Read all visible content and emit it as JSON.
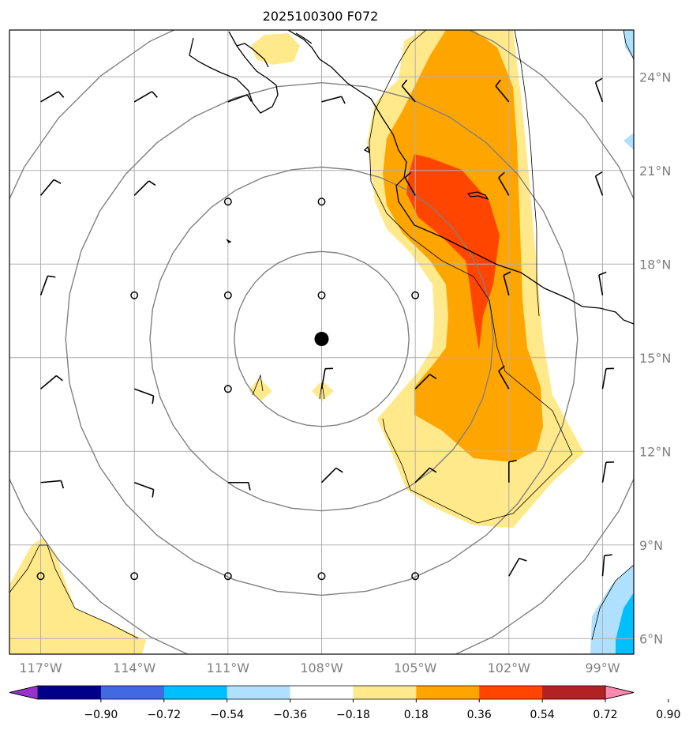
{
  "title": "2025100300 F072",
  "map": {
    "lon_range": [
      -118,
      -98
    ],
    "lat_range": [
      5.5,
      25.5
    ],
    "center_marker": {
      "lon": -108,
      "lat": 15.6
    },
    "lat_ticks": [
      {
        "value": 24,
        "label": "24°N"
      },
      {
        "value": 21,
        "label": "21°N"
      },
      {
        "value": 18,
        "label": "18°N"
      },
      {
        "value": 15,
        "label": "15°N"
      },
      {
        "value": 12,
        "label": "12°N"
      },
      {
        "value": 9,
        "label": "9°N"
      },
      {
        "value": 6,
        "label": "6°N"
      }
    ],
    "lon_ticks": [
      {
        "value": -117,
        "label": "117°W"
      },
      {
        "value": -114,
        "label": "114°W"
      },
      {
        "value": -111,
        "label": "111°W"
      },
      {
        "value": -108,
        "label": "108°W"
      },
      {
        "value": -105,
        "label": "105°W"
      },
      {
        "value": -102,
        "label": "102°W"
      },
      {
        "value": -99,
        "label": "99°W"
      }
    ],
    "range_rings_deg": [
      2.8,
      5.5,
      8.2,
      11.0
    ],
    "colors": {
      "grid": "#b0b0b0",
      "ring": "#808080",
      "coast": "#000000"
    }
  },
  "chart_data": {
    "type": "heatmap",
    "colorbar": {
      "levels": [
        "−0.90",
        "−0.72",
        "−0.54",
        "−0.36",
        "−0.18",
        "0.18",
        "0.36",
        "0.54",
        "0.72",
        "0.90"
      ],
      "colors": [
        "#9932cc",
        "#00008b",
        "#4169e1",
        "#00bfff",
        "#b0e0ff",
        "#ffffff",
        "#ffe98a",
        "#ffa500",
        "#ff4500",
        "#b22222",
        "#ff88b0"
      ]
    },
    "wind_barbs": [
      {
        "lon": -117,
        "lat": 23.2,
        "dir": 60,
        "flags": 1
      },
      {
        "lon": -114,
        "lat": 23.2,
        "dir": 60,
        "flags": 1
      },
      {
        "lon": -111,
        "lat": 23.2,
        "dir": 70,
        "flags": 1
      },
      {
        "lon": -108,
        "lat": 23.2,
        "dir": 75,
        "flags": 1
      },
      {
        "lon": -105,
        "lat": 23.2,
        "dir": 320,
        "flags": 1
      },
      {
        "lon": -102,
        "lat": 23.2,
        "dir": 320,
        "flags": 1
      },
      {
        "lon": -99,
        "lat": 23.2,
        "dir": 340,
        "flags": 1
      },
      {
        "lon": -117,
        "lat": 20.2,
        "dir": 40,
        "flags": 1
      },
      {
        "lon": -114,
        "lat": 20.2,
        "dir": 45,
        "flags": 1
      },
      {
        "lon": -111,
        "lat": 20.0,
        "dir": 0,
        "flags": 0
      },
      {
        "lon": -108,
        "lat": 20.0,
        "dir": 0,
        "flags": 0
      },
      {
        "lon": -105,
        "lat": 20.2,
        "dir": 330,
        "flags": 1
      },
      {
        "lon": -102,
        "lat": 20.2,
        "dir": 330,
        "flags": 1
      },
      {
        "lon": -99,
        "lat": 20.2,
        "dir": 340,
        "flags": 1
      },
      {
        "lon": -117,
        "lat": 17.0,
        "dir": 20,
        "flags": 1
      },
      {
        "lon": -114,
        "lat": 17.0,
        "dir": 0,
        "flags": 0
      },
      {
        "lon": -111,
        "lat": 17.0,
        "dir": 0,
        "flags": 0
      },
      {
        "lon": -108,
        "lat": 17.0,
        "dir": 0,
        "flags": 0
      },
      {
        "lon": -105,
        "lat": 17.0,
        "dir": 0,
        "flags": 0
      },
      {
        "lon": -102,
        "lat": 17.0,
        "dir": 345,
        "flags": 1
      },
      {
        "lon": -99,
        "lat": 17.0,
        "dir": 350,
        "flags": 1
      },
      {
        "lon": -117,
        "lat": 14.0,
        "dir": 50,
        "flags": 1
      },
      {
        "lon": -114,
        "lat": 14.0,
        "dir": 110,
        "flags": 1
      },
      {
        "lon": -111,
        "lat": 14.0,
        "dir": 0,
        "flags": 0
      },
      {
        "lon": -108,
        "lat": 14.0,
        "dir": 10,
        "flags": 1
      },
      {
        "lon": -105,
        "lat": 14.0,
        "dir": 45,
        "flags": 1
      },
      {
        "lon": -102,
        "lat": 14.0,
        "dir": 330,
        "flags": 1
      },
      {
        "lon": -99,
        "lat": 14.0,
        "dir": 10,
        "flags": 1
      },
      {
        "lon": -117,
        "lat": 11.0,
        "dir": 85,
        "flags": 1
      },
      {
        "lon": -114,
        "lat": 11.0,
        "dir": 110,
        "flags": 1
      },
      {
        "lon": -111,
        "lat": 11.0,
        "dir": 90,
        "flags": 1
      },
      {
        "lon": -108,
        "lat": 11.0,
        "dir": 45,
        "flags": 1
      },
      {
        "lon": -105,
        "lat": 11.0,
        "dir": 45,
        "flags": 1
      },
      {
        "lon": -102,
        "lat": 11.0,
        "dir": 0,
        "flags": 1
      },
      {
        "lon": -99,
        "lat": 11.0,
        "dir": 10,
        "flags": 1
      },
      {
        "lon": -117,
        "lat": 8.0,
        "dir": 0,
        "flags": 0
      },
      {
        "lon": -114,
        "lat": 8.0,
        "dir": 0,
        "flags": 0
      },
      {
        "lon": -111,
        "lat": 8.0,
        "dir": 0,
        "flags": 0
      },
      {
        "lon": -108,
        "lat": 8.0,
        "dir": 0,
        "flags": 0
      },
      {
        "lon": -105,
        "lat": 8.0,
        "dir": 0,
        "flags": 0
      },
      {
        "lon": -102,
        "lat": 8.0,
        "dir": 30,
        "flags": 1
      },
      {
        "lon": -99,
        "lat": 8.0,
        "dir": 5,
        "flags": 1
      }
    ]
  }
}
